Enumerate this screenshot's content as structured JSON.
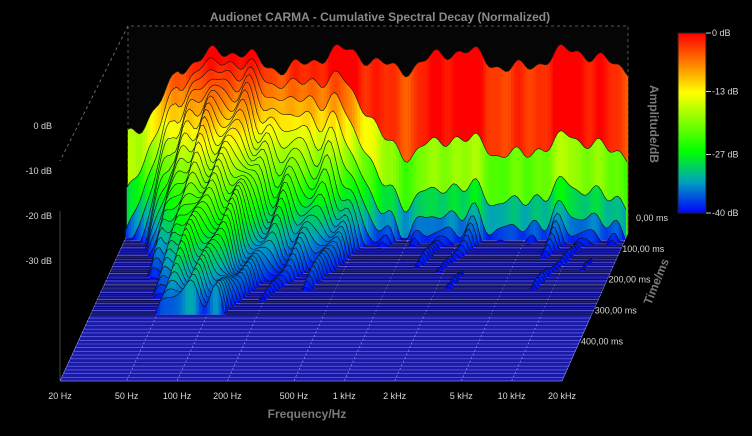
{
  "chart_data": {
    "type": "area",
    "title": "Audionet CARMA - Cumulative Spectral Decay (Normalized)",
    "xlabel": "Frequency/Hz",
    "zlabel": "Time/ms",
    "ylabel": "Amplitude/dB",
    "x_ticks": [
      "20 Hz",
      "50 Hz",
      "100 Hz",
      "200 Hz",
      "500 Hz",
      "1 kHz",
      "2 kHz",
      "5 kHz",
      "10 kHz",
      "20 kHz"
    ],
    "x_tick_values": [
      20,
      50,
      100,
      200,
      500,
      1000,
      2000,
      5000,
      10000,
      20000
    ],
    "x_range": [
      20,
      20000
    ],
    "x_scale": "log",
    "time_ticks": [
      "0,00 ms",
      "100,00 ms",
      "200,00 ms",
      "300,00 ms",
      "400,00 ms"
    ],
    "time_tick_values": [
      0,
      100,
      200,
      300,
      400
    ],
    "time_range": [
      0,
      480
    ],
    "y_ticks": [
      "0 dB",
      "-10 dB",
      "-20 dB",
      "-30 dB"
    ],
    "y_tick_values": [
      0,
      -10,
      -20,
      -30
    ],
    "y_range": [
      -40,
      0
    ],
    "colorbar": {
      "ticks": [
        "0 dB",
        "-13 dB",
        "-27 dB",
        "-40 dB"
      ],
      "tick_values": [
        0,
        -13,
        -27,
        -40
      ],
      "colors": [
        "#ff0000",
        "#ffff00",
        "#00ff00",
        "#0000ff"
      ]
    },
    "floor_color": "#1a1aa8",
    "background": "#000000",
    "grid": true
  }
}
